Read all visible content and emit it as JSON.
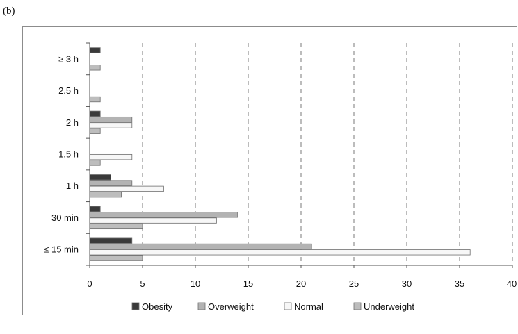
{
  "panel_label": "(b)",
  "chart_data": {
    "type": "bar",
    "orientation": "horizontal",
    "categories": [
      "≥ 3 h",
      "2.5 h",
      "2 h",
      "1.5 h",
      "1 h",
      "30 min",
      "≤ 15 min"
    ],
    "series": [
      {
        "name": "Obesity",
        "values": [
          1,
          0,
          1,
          0,
          2,
          1,
          4
        ],
        "color": "#3a3a3a"
      },
      {
        "name": "Overweight",
        "values": [
          0,
          0,
          4,
          0,
          4,
          14,
          21
        ],
        "color": "#b3b3b3"
      },
      {
        "name": "Normal",
        "values": [
          0,
          0,
          4,
          4,
          7,
          12,
          36
        ],
        "color": "#f7f7f7"
      },
      {
        "name": "Underweight",
        "values": [
          1,
          1,
          1,
          1,
          3,
          5,
          5
        ],
        "color": "#bdbdbd"
      }
    ],
    "xlim": [
      0,
      40
    ],
    "xticks": [
      0,
      5,
      10,
      15,
      20,
      25,
      30,
      35,
      40
    ],
    "grid": "vertical dashed",
    "legend_position": "bottom"
  }
}
